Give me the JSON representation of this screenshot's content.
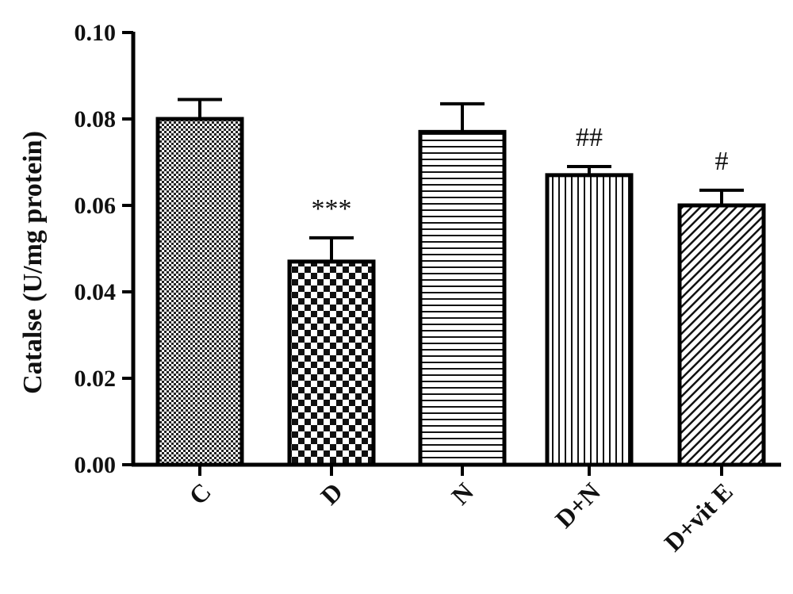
{
  "chart_data": {
    "type": "bar",
    "title": "",
    "xlabel": "",
    "ylabel": "Catalse (U/mg protein)",
    "ylim": [
      0,
      0.1
    ],
    "yticks": [
      "0.00",
      "0.02",
      "0.04",
      "0.06",
      "0.08",
      "0.10"
    ],
    "grid": false,
    "categories": [
      "C",
      "D",
      "N",
      "D+N",
      "D+vit E"
    ],
    "values": [
      0.08,
      0.047,
      0.077,
      0.067,
      0.06
    ],
    "errors": [
      0.0045,
      0.0055,
      0.0065,
      0.002,
      0.0035
    ],
    "annotations": [
      "",
      "***",
      "",
      "##",
      "#"
    ],
    "patterns": [
      "fine-checker",
      "checker",
      "horizontal-lines",
      "vertical-lines",
      "diagonal-lines"
    ]
  }
}
